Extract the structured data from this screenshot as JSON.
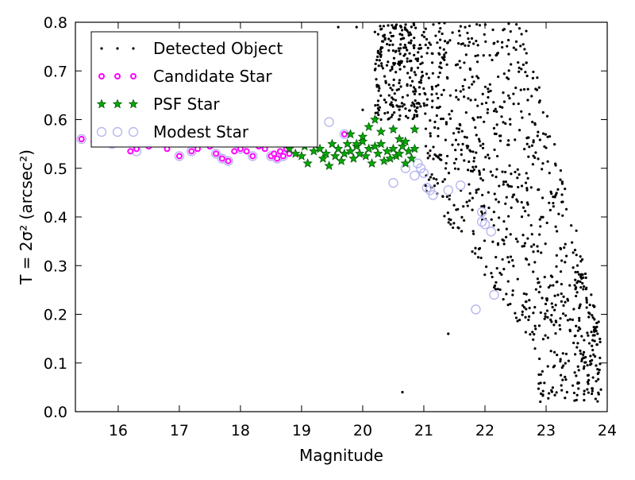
{
  "chart_data": {
    "type": "scatter",
    "xlabel": "Magnitude",
    "ylabel": "T = 2σ² (arcsec²)",
    "xlim": [
      15.3,
      24
    ],
    "ylim": [
      0,
      0.8
    ],
    "xticks": [
      "16",
      "17",
      "18",
      "19",
      "20",
      "21",
      "22",
      "23",
      "24"
    ],
    "yticks": [
      "0.0",
      "0.1",
      "0.2",
      "0.3",
      "0.4",
      "0.5",
      "0.6",
      "0.7",
      "0.8"
    ],
    "grid": false,
    "legend_position": "top-left",
    "colors": {
      "detected": "#000000",
      "candidate": "#ff00ff",
      "psf": "#00aa00",
      "psf_edge": "#0a5a0a",
      "modest": "#b8b8f0"
    },
    "series": [
      {
        "name": "Detected Object",
        "marker": "dot",
        "generated": true,
        "points": [
          [
            20.65,
            0.04
          ],
          [
            21.4,
            0.16
          ],
          [
            20.3,
            0.6
          ],
          [
            20.0,
            0.62
          ],
          [
            19.9,
            0.79
          ],
          [
            19.6,
            0.79
          ],
          [
            20.2,
            0.78
          ]
        ]
      },
      {
        "name": "Candidate Star",
        "marker": "small-circle",
        "points": [
          [
            15.4,
            0.56
          ],
          [
            15.6,
            0.555
          ],
          [
            15.9,
            0.55
          ],
          [
            16.2,
            0.535
          ],
          [
            16.3,
            0.54
          ],
          [
            16.5,
            0.545
          ],
          [
            16.8,
            0.54
          ],
          [
            17.0,
            0.525
          ],
          [
            17.2,
            0.535
          ],
          [
            17.3,
            0.54
          ],
          [
            17.5,
            0.545
          ],
          [
            17.6,
            0.53
          ],
          [
            17.7,
            0.52
          ],
          [
            17.8,
            0.515
          ],
          [
            17.9,
            0.535
          ],
          [
            18.0,
            0.54
          ],
          [
            18.1,
            0.535
          ],
          [
            18.2,
            0.525
          ],
          [
            18.3,
            0.545
          ],
          [
            18.4,
            0.54
          ],
          [
            18.5,
            0.525
          ],
          [
            18.55,
            0.53
          ],
          [
            18.6,
            0.52
          ],
          [
            18.65,
            0.535
          ],
          [
            18.7,
            0.525
          ],
          [
            18.75,
            0.54
          ],
          [
            18.8,
            0.53
          ],
          [
            19.7,
            0.57
          ]
        ]
      },
      {
        "name": "PSF Star",
        "marker": "star",
        "points": [
          [
            18.8,
            0.54
          ],
          [
            18.9,
            0.53
          ],
          [
            19.0,
            0.525
          ],
          [
            19.05,
            0.545
          ],
          [
            19.1,
            0.51
          ],
          [
            19.2,
            0.535
          ],
          [
            19.3,
            0.54
          ],
          [
            19.35,
            0.52
          ],
          [
            19.4,
            0.53
          ],
          [
            19.45,
            0.505
          ],
          [
            19.5,
            0.55
          ],
          [
            19.55,
            0.525
          ],
          [
            19.6,
            0.54
          ],
          [
            19.65,
            0.515
          ],
          [
            19.7,
            0.53
          ],
          [
            19.75,
            0.55
          ],
          [
            19.8,
            0.535
          ],
          [
            19.85,
            0.52
          ],
          [
            19.9,
            0.545
          ],
          [
            19.95,
            0.53
          ],
          [
            20.0,
            0.555
          ],
          [
            20.05,
            0.525
          ],
          [
            20.1,
            0.54
          ],
          [
            20.15,
            0.51
          ],
          [
            20.2,
            0.545
          ],
          [
            20.25,
            0.53
          ],
          [
            20.3,
            0.55
          ],
          [
            20.35,
            0.515
          ],
          [
            20.4,
            0.535
          ],
          [
            20.45,
            0.52
          ],
          [
            20.5,
            0.54
          ],
          [
            20.55,
            0.525
          ],
          [
            20.6,
            0.53
          ],
          [
            20.65,
            0.545
          ],
          [
            20.7,
            0.51
          ],
          [
            20.75,
            0.535
          ],
          [
            20.8,
            0.52
          ],
          [
            20.85,
            0.54
          ],
          [
            19.8,
            0.57
          ],
          [
            20.0,
            0.565
          ],
          [
            20.2,
            0.6
          ],
          [
            20.3,
            0.575
          ],
          [
            20.5,
            0.58
          ],
          [
            20.7,
            0.555
          ],
          [
            20.85,
            0.58
          ],
          [
            20.6,
            0.56
          ],
          [
            20.1,
            0.585
          ],
          [
            19.9,
            0.55
          ]
        ]
      },
      {
        "name": "Modest Star",
        "marker": "open-circle",
        "points": [
          [
            15.4,
            0.56
          ],
          [
            15.9,
            0.55
          ],
          [
            16.3,
            0.535
          ],
          [
            17.0,
            0.525
          ],
          [
            17.2,
            0.535
          ],
          [
            17.6,
            0.53
          ],
          [
            17.7,
            0.52
          ],
          [
            17.8,
            0.515
          ],
          [
            18.0,
            0.54
          ],
          [
            18.2,
            0.525
          ],
          [
            18.5,
            0.525
          ],
          [
            18.6,
            0.52
          ],
          [
            18.7,
            0.525
          ],
          [
            19.45,
            0.595
          ],
          [
            19.7,
            0.57
          ],
          [
            20.5,
            0.47
          ],
          [
            20.7,
            0.5
          ],
          [
            20.85,
            0.485
          ],
          [
            20.9,
            0.51
          ],
          [
            20.95,
            0.5
          ],
          [
            21.0,
            0.49
          ],
          [
            21.05,
            0.46
          ],
          [
            21.1,
            0.455
          ],
          [
            21.15,
            0.445
          ],
          [
            21.4,
            0.455
          ],
          [
            21.6,
            0.465
          ],
          [
            21.95,
            0.41
          ],
          [
            21.95,
            0.39
          ],
          [
            22.0,
            0.385
          ],
          [
            22.1,
            0.37
          ],
          [
            22.15,
            0.24
          ],
          [
            21.85,
            0.21
          ]
        ]
      }
    ]
  }
}
